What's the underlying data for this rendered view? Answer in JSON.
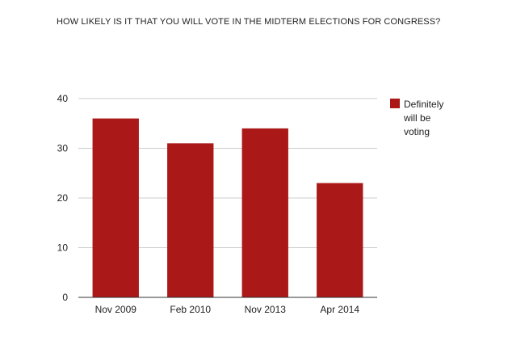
{
  "chart_data": {
    "type": "bar",
    "title": "HOW LIKELY IS IT THAT YOU WILL VOTE IN THE MIDTERM ELECTIONS FOR CONGRESS?",
    "categories": [
      "Nov 2009",
      "Feb 2010",
      "Nov 2013",
      "Apr 2014"
    ],
    "series": [
      {
        "name": "Definitely will be voting",
        "values": [
          36,
          31,
          34,
          23
        ],
        "color": "#ab1818"
      }
    ],
    "ylim": [
      0,
      40
    ],
    "yticks": [
      0,
      10,
      20,
      30,
      40
    ],
    "grid": true,
    "legend": "right"
  }
}
